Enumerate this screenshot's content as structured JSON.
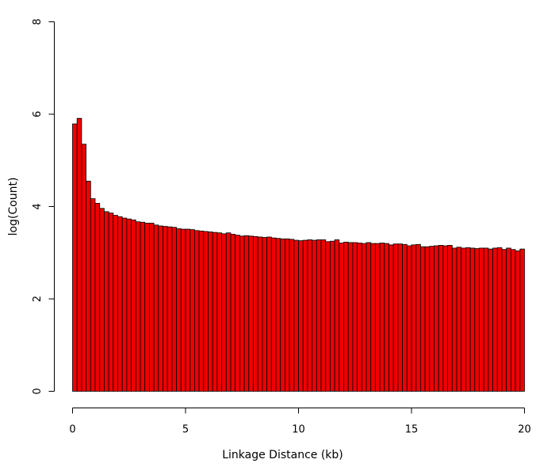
{
  "chart_data": {
    "type": "bar",
    "xlabel": "Linkage Distance (kb)",
    "ylabel": "log(Count)",
    "xlim": [
      0,
      20
    ],
    "ylim": [
      0,
      8
    ],
    "x_ticks": [
      0,
      5,
      10,
      15,
      20
    ],
    "y_ticks": [
      0,
      2,
      4,
      6,
      8
    ],
    "bin_width": 0.2,
    "grid": false,
    "legend": "none",
    "bar_color": "#ee0000",
    "values": [
      5.79,
      5.91,
      5.35,
      4.55,
      4.17,
      4.07,
      3.96,
      3.89,
      3.86,
      3.81,
      3.78,
      3.75,
      3.73,
      3.71,
      3.67,
      3.66,
      3.64,
      3.64,
      3.6,
      3.58,
      3.57,
      3.56,
      3.55,
      3.52,
      3.51,
      3.51,
      3.5,
      3.48,
      3.47,
      3.46,
      3.45,
      3.44,
      3.43,
      3.41,
      3.43,
      3.4,
      3.38,
      3.36,
      3.37,
      3.36,
      3.35,
      3.34,
      3.33,
      3.34,
      3.32,
      3.31,
      3.3,
      3.3,
      3.29,
      3.27,
      3.26,
      3.27,
      3.28,
      3.27,
      3.28,
      3.28,
      3.24,
      3.25,
      3.28,
      3.21,
      3.23,
      3.22,
      3.22,
      3.21,
      3.2,
      3.22,
      3.2,
      3.2,
      3.21,
      3.2,
      3.17,
      3.19,
      3.19,
      3.18,
      3.15,
      3.17,
      3.18,
      3.13,
      3.13,
      3.14,
      3.15,
      3.16,
      3.15,
      3.16,
      3.1,
      3.12,
      3.1,
      3.11,
      3.1,
      3.09,
      3.1,
      3.1,
      3.08,
      3.1,
      3.11,
      3.07,
      3.1,
      3.07,
      3.04,
      3.08
    ]
  }
}
